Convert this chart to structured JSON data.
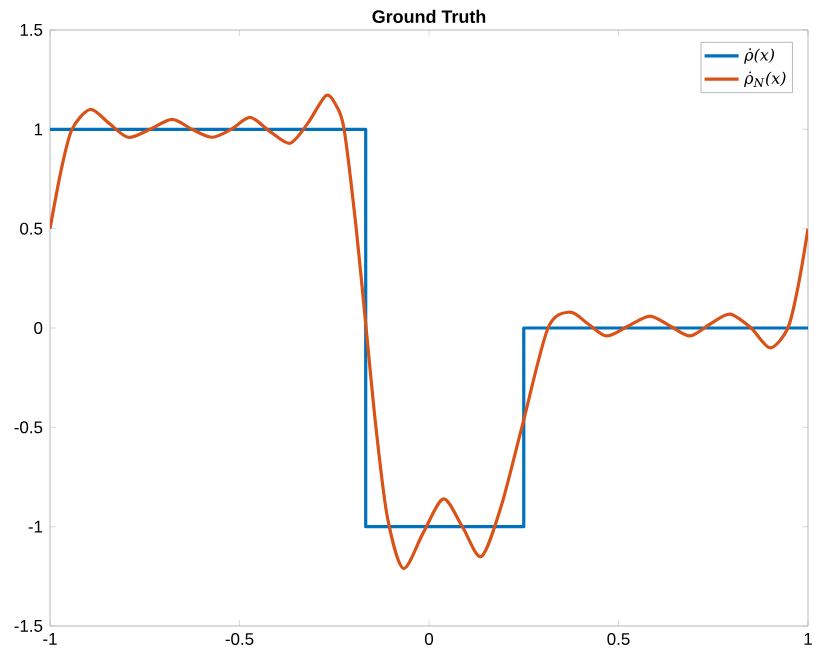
{
  "chart_data": {
    "type": "line",
    "title": "Ground Truth",
    "series": [
      {
        "name": "ρ̇(x)",
        "type": "step",
        "color": "#0072bd",
        "x": [
          -1,
          -0.167,
          0.25,
          1
        ],
        "values": [
          1,
          -1,
          0,
          0
        ]
      },
      {
        "name": "ρ̇$_{N}$(x)",
        "color": "#d95319",
        "x": [
          -1,
          -0.97,
          -0.942,
          -0.894,
          -0.844,
          -0.794,
          -0.736,
          -0.678,
          -0.625,
          -0.573,
          -0.522,
          -0.472,
          -0.42,
          -0.367,
          -0.32,
          -0.272,
          -0.245,
          -0.224,
          -0.192,
          -0.166,
          -0.14,
          -0.11,
          -0.068,
          -0.015,
          0.038,
          0.088,
          0.138,
          0.19,
          0.245,
          0.314,
          0.372,
          0.42,
          0.469,
          0.526,
          0.583,
          0.636,
          0.689,
          0.742,
          0.794,
          0.85,
          0.9,
          0.947,
          0.975,
          1
        ],
        "values": [
          0.5,
          0.8,
          1.0,
          1.1,
          1.03,
          0.96,
          1.0,
          1.05,
          1.0,
          0.96,
          1.0,
          1.06,
          0.99,
          0.93,
          1.03,
          1.17,
          1.12,
          1.0,
          0.5,
          0,
          -0.5,
          -0.95,
          -1.21,
          -1.03,
          -0.86,
          -1.0,
          -1.15,
          -0.9,
          -0.5,
          0,
          0.08,
          0.02,
          -0.04,
          0.01,
          0.06,
          0.01,
          -0.04,
          0.02,
          0.07,
          0,
          -0.1,
          0,
          0.22,
          0.5
        ]
      }
    ],
    "xlim": [
      -1,
      1
    ],
    "ylim": [
      -1.5,
      1.5
    ],
    "xticks": [
      -1,
      -0.5,
      0,
      0.5,
      1
    ],
    "yticks": [
      -1.5,
      -1,
      -0.5,
      0,
      0.5,
      1,
      1.5
    ],
    "grid": false,
    "legend": "top right"
  }
}
